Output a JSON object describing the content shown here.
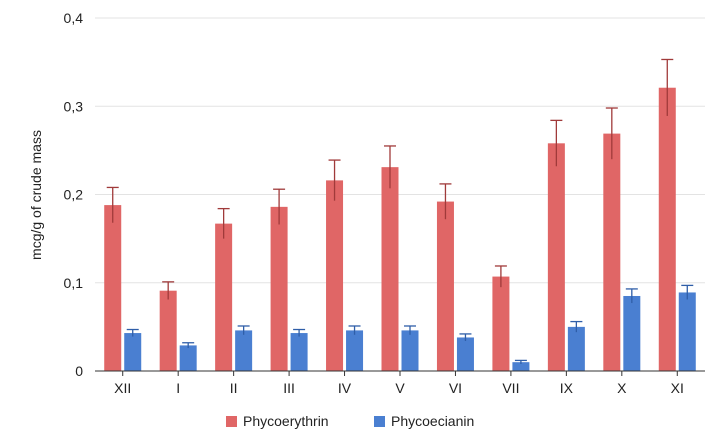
{
  "chart_data": {
    "type": "bar",
    "title": "",
    "xlabel": "",
    "ylabel": "mcg/g of crude mass",
    "ylim": [
      0,
      0.4
    ],
    "yticks": [
      "0",
      "0,1",
      "0,2",
      "0,3",
      "0,4"
    ],
    "ytick_values": [
      0,
      0.1,
      0.2,
      0.3,
      0.4
    ],
    "categories": [
      "XII",
      "I",
      "II",
      "III",
      "IV",
      "V",
      "VI",
      "VII",
      "IX",
      "X",
      "XI"
    ],
    "grid": true,
    "legend_position": "bottom",
    "series": [
      {
        "name": "Phycoerythrin",
        "color": "#e06666",
        "values": [
          0.188,
          0.091,
          0.167,
          0.186,
          0.216,
          0.231,
          0.192,
          0.107,
          0.258,
          0.269,
          0.321
        ],
        "errors": [
          0.02,
          0.01,
          0.017,
          0.02,
          0.023,
          0.024,
          0.02,
          0.012,
          0.026,
          0.029,
          0.032
        ]
      },
      {
        "name": "Phycoecianin",
        "color": "#4a7fd1",
        "values": [
          0.043,
          0.029,
          0.046,
          0.043,
          0.046,
          0.046,
          0.038,
          0.01,
          0.05,
          0.085,
          0.089
        ],
        "errors": [
          0.004,
          0.003,
          0.005,
          0.004,
          0.005,
          0.005,
          0.004,
          0.002,
          0.006,
          0.008,
          0.008
        ]
      }
    ]
  }
}
